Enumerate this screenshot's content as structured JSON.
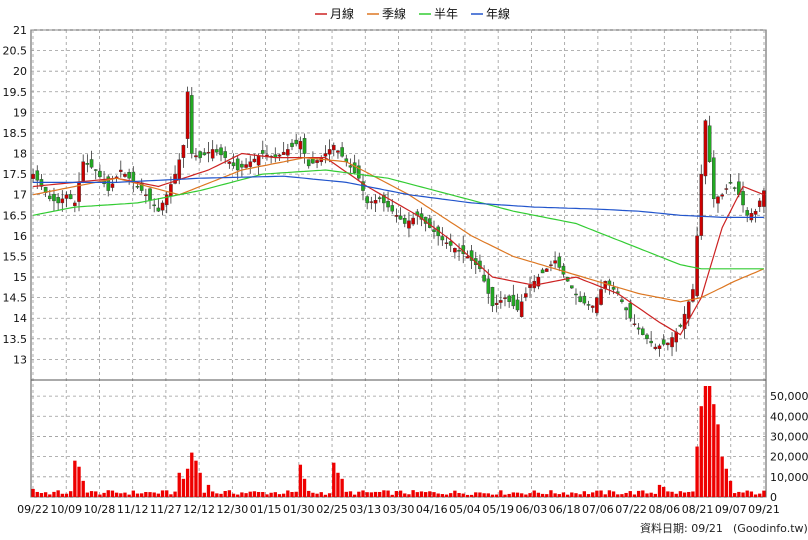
{
  "chart_data": {
    "type": "line",
    "title": "",
    "legend": {
      "placement": "top-center",
      "items": [
        {
          "name": "月線",
          "color": "#cc2222"
        },
        {
          "name": "季線",
          "color": "#dd7722"
        },
        {
          "name": "半年",
          "color": "#33cc33"
        },
        {
          "name": "年線",
          "color": "#2255cc"
        }
      ]
    },
    "price_panel": {
      "ylim": [
        12.5,
        21
      ],
      "yticks": [
        13,
        13.5,
        14,
        14.5,
        15,
        15.5,
        16,
        16.5,
        17,
        17.5,
        18,
        18.5,
        19,
        19.5,
        20,
        20.5,
        21
      ],
      "grid": true,
      "candle_colors": {
        "up": "#cc0000",
        "down": "#22aa22"
      },
      "close_path": [
        [
          0,
          17.5
        ],
        [
          2,
          17.2
        ],
        [
          4,
          16.9
        ],
        [
          6,
          16.8
        ],
        [
          8,
          17.0
        ],
        [
          10,
          16.8
        ],
        [
          12,
          17.8
        ],
        [
          15,
          17.6
        ],
        [
          18,
          17.1
        ],
        [
          21,
          17.6
        ],
        [
          24,
          17.3
        ],
        [
          27,
          17.0
        ],
        [
          30,
          16.6
        ],
        [
          32,
          17.0
        ],
        [
          34,
          17.5
        ],
        [
          36,
          18.2
        ],
        [
          37,
          19.5
        ],
        [
          38,
          18.0
        ],
        [
          40,
          17.9
        ],
        [
          43,
          18.1
        ],
        [
          46,
          17.9
        ],
        [
          49,
          17.6
        ],
        [
          52,
          17.8
        ],
        [
          55,
          18.0
        ],
        [
          58,
          17.9
        ],
        [
          61,
          18.1
        ],
        [
          64,
          18.3
        ],
        [
          66,
          17.7
        ],
        [
          69,
          17.9
        ],
        [
          72,
          18.2
        ],
        [
          75,
          17.8
        ],
        [
          78,
          17.4
        ],
        [
          80,
          16.8
        ],
        [
          83,
          16.9
        ],
        [
          86,
          16.6
        ],
        [
          89,
          16.3
        ],
        [
          92,
          16.5
        ],
        [
          95,
          16.2
        ],
        [
          98,
          15.9
        ],
        [
          101,
          15.7
        ],
        [
          104,
          15.5
        ],
        [
          107,
          15.2
        ],
        [
          110,
          14.3
        ],
        [
          113,
          14.5
        ],
        [
          116,
          14.2
        ],
        [
          119,
          14.8
        ],
        [
          122,
          15.1
        ],
        [
          125,
          15.4
        ],
        [
          128,
          14.9
        ],
        [
          131,
          14.4
        ],
        [
          134,
          14.3
        ],
        [
          137,
          14.9
        ],
        [
          140,
          14.6
        ],
        [
          143,
          14.0
        ],
        [
          146,
          13.6
        ],
        [
          149,
          13.3
        ],
        [
          152,
          13.4
        ],
        [
          155,
          13.8
        ],
        [
          157,
          14.4
        ],
        [
          158,
          14.7
        ],
        [
          159,
          16.0
        ],
        [
          160,
          17.5
        ],
        [
          161,
          18.8
        ],
        [
          162,
          17.8
        ],
        [
          163,
          16.9
        ],
        [
          165,
          17.0
        ],
        [
          167,
          17.3
        ],
        [
          169,
          17.0
        ],
        [
          171,
          16.5
        ],
        [
          173,
          16.6
        ],
        [
          175,
          17.1
        ]
      ],
      "candle_count": 176,
      "ma": {
        "月線": [
          [
            0,
            17.2
          ],
          [
            20,
            17.4
          ],
          [
            30,
            17.2
          ],
          [
            42,
            17.6
          ],
          [
            50,
            18.0
          ],
          [
            58,
            17.9
          ],
          [
            70,
            17.9
          ],
          [
            80,
            17.2
          ],
          [
            92,
            16.5
          ],
          [
            100,
            15.9
          ],
          [
            110,
            15.0
          ],
          [
            120,
            14.8
          ],
          [
            130,
            15.0
          ],
          [
            140,
            14.6
          ],
          [
            150,
            13.9
          ],
          [
            155,
            13.6
          ],
          [
            160,
            14.5
          ],
          [
            165,
            16.2
          ],
          [
            170,
            17.2
          ],
          [
            175,
            17.0
          ]
        ],
        "季線": [
          [
            0,
            17.0
          ],
          [
            20,
            17.4
          ],
          [
            35,
            17.0
          ],
          [
            50,
            17.6
          ],
          [
            65,
            17.9
          ],
          [
            75,
            17.8
          ],
          [
            90,
            17.0
          ],
          [
            105,
            16.0
          ],
          [
            115,
            15.5
          ],
          [
            125,
            15.2
          ],
          [
            135,
            14.9
          ],
          [
            145,
            14.6
          ],
          [
            155,
            14.4
          ],
          [
            160,
            14.5
          ],
          [
            168,
            14.9
          ],
          [
            175,
            15.2
          ]
        ],
        "半年": [
          [
            0,
            16.5
          ],
          [
            10,
            16.7
          ],
          [
            25,
            16.8
          ],
          [
            40,
            17.1
          ],
          [
            55,
            17.5
          ],
          [
            70,
            17.6
          ],
          [
            85,
            17.4
          ],
          [
            100,
            17.0
          ],
          [
            115,
            16.6
          ],
          [
            130,
            16.3
          ],
          [
            145,
            15.7
          ],
          [
            155,
            15.3
          ],
          [
            160,
            15.2
          ],
          [
            175,
            15.2
          ]
        ],
        "年線": [
          [
            0,
            17.3
          ],
          [
            20,
            17.3
          ],
          [
            40,
            17.4
          ],
          [
            60,
            17.45
          ],
          [
            75,
            17.3
          ],
          [
            90,
            17.0
          ],
          [
            105,
            16.8
          ],
          [
            120,
            16.7
          ],
          [
            135,
            16.65
          ],
          [
            145,
            16.6
          ],
          [
            155,
            16.5
          ],
          [
            165,
            16.45
          ],
          [
            175,
            16.45
          ]
        ]
      }
    },
    "volume_panel": {
      "ylim": [
        0,
        55000
      ],
      "yticks": [
        {
          "v": 0,
          "label": "0"
        },
        {
          "v": 10000,
          "label": "10,000"
        },
        {
          "v": 20000,
          "label": "20,000"
        },
        {
          "v": 30000,
          "label": "30,000"
        },
        {
          "v": 40000,
          "label": "40,000"
        },
        {
          "v": 50000,
          "label": "50,000"
        }
      ],
      "color": "#ee0000",
      "spikes": [
        [
          0,
          4000
        ],
        [
          1,
          2500
        ],
        [
          10,
          18000
        ],
        [
          11,
          15000
        ],
        [
          12,
          8000
        ],
        [
          35,
          12000
        ],
        [
          36,
          9000
        ],
        [
          37,
          14000
        ],
        [
          38,
          22000
        ],
        [
          39,
          18000
        ],
        [
          40,
          12000
        ],
        [
          42,
          6000
        ],
        [
          64,
          16000
        ],
        [
          65,
          9000
        ],
        [
          72,
          17000
        ],
        [
          73,
          12000
        ],
        [
          74,
          9000
        ],
        [
          150,
          6000
        ],
        [
          151,
          5000
        ],
        [
          159,
          25000
        ],
        [
          160,
          45000
        ],
        [
          161,
          55000
        ],
        [
          162,
          55000
        ],
        [
          163,
          46000
        ],
        [
          164,
          36000
        ],
        [
          165,
          20000
        ],
        [
          166,
          14000
        ],
        [
          167,
          8000
        ]
      ],
      "base_volume": 2000
    },
    "x_axis": {
      "tick_labels": [
        "09/22",
        "10/09",
        "10/28",
        "11/12",
        "11/27",
        "12/12",
        "12/30",
        "01/15",
        "01/30",
        "02/25",
        "03/13",
        "03/30",
        "04/16",
        "05/04",
        "05/19",
        "06/03",
        "06/18",
        "07/06",
        "07/22",
        "08/06",
        "08/21",
        "09/07",
        "09/21"
      ]
    }
  },
  "footer": {
    "source_label": "資料日期: 09/21",
    "site_label": "(Goodinfo.tw)"
  }
}
